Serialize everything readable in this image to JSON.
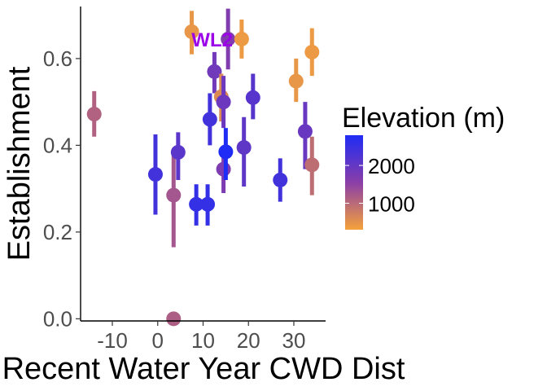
{
  "chart_data": {
    "type": "scatter",
    "xlabel": "Recent Water Year CWD Dist",
    "ylabel": "Establishment",
    "xlim": [
      -17,
      37
    ],
    "ylim": [
      -0.005,
      0.72
    ],
    "x_ticks": [
      -10,
      0,
      10,
      20,
      30
    ],
    "x_tick_labels": [
      "-10",
      "0",
      "10",
      "20",
      "30"
    ],
    "y_ticks": [
      0.0,
      0.2,
      0.4,
      0.6
    ],
    "y_tick_labels": [
      "0.0",
      "0.2",
      "0.4",
      "0.6"
    ],
    "grid": false,
    "legend": {
      "title": "Elevation (m)",
      "type": "colorbar",
      "placement": "right",
      "range": [
        300,
        2800
      ],
      "breaks": [
        2000,
        1000
      ],
      "break_labels": [
        "2000",
        "1000"
      ],
      "low_color": "#f5a23a",
      "mid_color": "#8a3ea8",
      "high_color": "#1f2cf5"
    },
    "annotations": [
      {
        "text": "WL2",
        "x": 12,
        "y": 0.645,
        "color": "#9b00e8"
      }
    ],
    "points": [
      {
        "x": -14,
        "y": 0.472,
        "lo": 0.42,
        "hi": 0.525,
        "elevation": 1100
      },
      {
        "x": -0.5,
        "y": 0.333,
        "lo": 0.24,
        "hi": 0.425,
        "elevation": 2400
      },
      {
        "x": 3.5,
        "y": 0.0,
        "lo": 0.0,
        "hi": 0.0,
        "elevation": 1150
      },
      {
        "x": 3.5,
        "y": 0.285,
        "lo": 0.165,
        "hi": 0.38,
        "elevation": 1250
      },
      {
        "x": 4.5,
        "y": 0.384,
        "lo": 0.32,
        "hi": 0.43,
        "elevation": 2100
      },
      {
        "x": 7.5,
        "y": 0.662,
        "lo": 0.61,
        "hi": 0.71,
        "elevation": 450
      },
      {
        "x": 8.5,
        "y": 0.264,
        "lo": 0.215,
        "hi": 0.31,
        "elevation": 2550
      },
      {
        "x": 11,
        "y": 0.264,
        "lo": 0.215,
        "hi": 0.31,
        "elevation": 2550
      },
      {
        "x": 11.5,
        "y": 0.46,
        "lo": 0.4,
        "hi": 0.52,
        "elevation": 2400
      },
      {
        "x": 12.5,
        "y": 0.57,
        "lo": 0.52,
        "hi": 0.615,
        "elevation": 1850
      },
      {
        "x": 14,
        "y": 0.512,
        "lo": 0.455,
        "hi": 0.565,
        "elevation": 600
      },
      {
        "x": 14.5,
        "y": 0.5,
        "lo": 0.44,
        "hi": 0.56,
        "elevation": 1900
      },
      {
        "x": 14.5,
        "y": 0.345,
        "lo": 0.29,
        "hi": 0.39,
        "elevation": 1700
      },
      {
        "x": 15,
        "y": 0.385,
        "lo": 0.32,
        "hi": 0.44,
        "elevation": 2800
      },
      {
        "x": 15.5,
        "y": 0.645,
        "lo": 0.575,
        "hi": 0.715,
        "elevation": 1650
      },
      {
        "x": 18.5,
        "y": 0.645,
        "lo": 0.6,
        "hi": 0.69,
        "elevation": 400
      },
      {
        "x": 19,
        "y": 0.395,
        "lo": 0.305,
        "hi": 0.465,
        "elevation": 2050
      },
      {
        "x": 21,
        "y": 0.51,
        "lo": 0.46,
        "hi": 0.565,
        "elevation": 2150
      },
      {
        "x": 27,
        "y": 0.32,
        "lo": 0.27,
        "hi": 0.37,
        "elevation": 2400
      },
      {
        "x": 30.5,
        "y": 0.548,
        "lo": 0.5,
        "hi": 0.6,
        "elevation": 450
      },
      {
        "x": 32.5,
        "y": 0.432,
        "lo": 0.345,
        "hi": 0.5,
        "elevation": 1950
      },
      {
        "x": 34,
        "y": 0.615,
        "lo": 0.56,
        "hi": 0.67,
        "elevation": 400
      },
      {
        "x": 34,
        "y": 0.355,
        "lo": 0.285,
        "hi": 0.42,
        "elevation": 950
      }
    ]
  }
}
